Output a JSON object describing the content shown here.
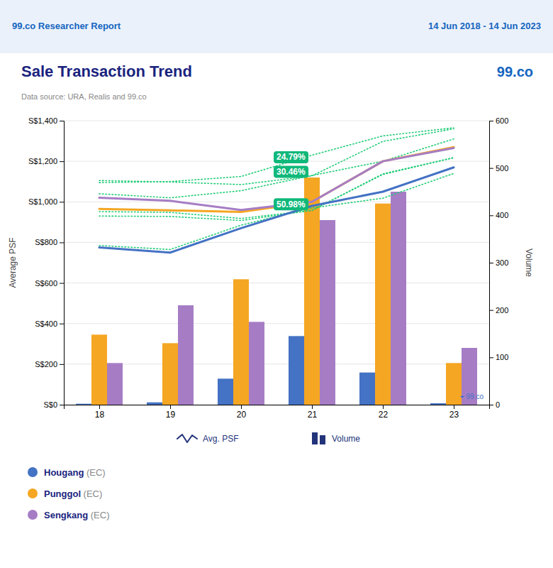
{
  "chart_data": {
    "type": "bar",
    "title": "Sale Transaction Trend",
    "subtitle": "Data source: URA, Realis and 99.co",
    "header": {
      "left": "99.co Researcher Report",
      "right": "14 Jun 2018 - 14 Jun 2023"
    },
    "logo": "99.co",
    "watermark": "⌖ 99.co",
    "ylabel": "Average PSF",
    "y2label": "Volume",
    "type_labels": {
      "line": "Avg. PSF",
      "bar": "Volume"
    },
    "x": [
      18,
      19,
      20,
      21,
      22,
      23
    ],
    "xlim": [
      17.5,
      23.5
    ],
    "xticks": [
      18,
      19,
      20,
      21,
      22,
      23
    ],
    "ylim": [
      0,
      1400
    ],
    "yticks": [
      {
        "value": 0,
        "label": "S$0"
      },
      {
        "value": 200,
        "label": "S$200"
      },
      {
        "value": 400,
        "label": "S$400"
      },
      {
        "value": 600,
        "label": "S$600"
      },
      {
        "value": 800,
        "label": "S$800"
      },
      {
        "value": 1000,
        "label": "S$1,000"
      },
      {
        "value": 1200,
        "label": "S$1,200"
      },
      {
        "value": 1400,
        "label": "S$1,400"
      }
    ],
    "y2lim": [
      0,
      600
    ],
    "y2ticks": [
      0,
      100,
      200,
      300,
      400,
      500,
      600
    ],
    "grid": true,
    "series": [
      {
        "name": "Hougang (EC)",
        "type": "bar",
        "axis": "y2",
        "color": "#4472C4",
        "values": [
          2,
          5,
          55,
          145,
          68,
          3
        ]
      },
      {
        "name": "Punggol (EC)",
        "type": "bar",
        "axis": "y2",
        "color": "#F5A623",
        "values": [
          148,
          130,
          265,
          480,
          425,
          88
        ]
      },
      {
        "name": "Sengkang (EC)",
        "type": "bar",
        "axis": "y2",
        "color": "#A67DC5",
        "values": [
          88,
          210,
          175,
          390,
          450,
          120
        ]
      },
      {
        "type": "line",
        "line_style": "dotted",
        "color": "#22CC77",
        "values": [
          1040,
          1020,
          1055,
          1130,
          1200,
          1310
        ]
      },
      {
        "type": "line",
        "line_style": "dotted",
        "color": "#22CC77",
        "values": [
          785,
          765,
          885,
          970,
          1018,
          1140
        ]
      },
      {
        "type": "line",
        "line_style": "dotted",
        "color": "#22CC77",
        "values": [
          1095,
          1100,
          1125,
          1230,
          1325,
          1365
        ]
      },
      {
        "type": "line",
        "line_style": "dotted",
        "color": "#22CC77",
        "values": [
          930,
          928,
          908,
          958,
          1135,
          1218
        ]
      },
      {
        "type": "line",
        "line_style": "dotted",
        "color": "#22CC77",
        "values": [
          1105,
          1098,
          1085,
          1128,
          1298,
          1360
        ]
      },
      {
        "type": "line",
        "line_style": "dotted",
        "color": "#22CC77",
        "values": [
          952,
          948,
          918,
          958,
          1138,
          1218
        ]
      },
      {
        "name": "Hougang (EC)",
        "type": "line",
        "line_style": "solid",
        "color": "#4472C4",
        "values": [
          775,
          750,
          870,
          980,
          1050,
          1170
        ]
      },
      {
        "name": "Punggol (EC)",
        "type": "line",
        "line_style": "solid",
        "color": "#F5A623",
        "values": [
          965,
          958,
          950,
          1000,
          1200,
          1270
        ]
      },
      {
        "name": "Sengkang (EC)",
        "type": "line",
        "line_style": "solid",
        "color": "#A67DC5",
        "values": [
          1020,
          1005,
          960,
          1000,
          1200,
          1265
        ]
      }
    ],
    "annotations": [
      {
        "text": "24.79%",
        "x": 20.45,
        "y": 1220,
        "color": "#10B87A"
      },
      {
        "text": "30.46%",
        "x": 20.45,
        "y": 1148,
        "color": "#10B87A"
      },
      {
        "text": "50.98%",
        "x": 20.45,
        "y": 988,
        "color": "#10B87A"
      }
    ]
  }
}
